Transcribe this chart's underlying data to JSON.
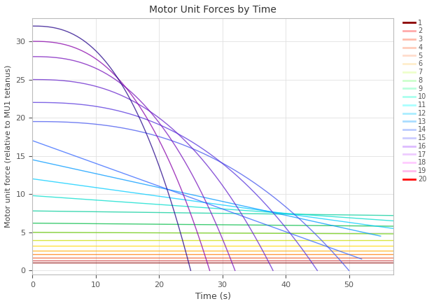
{
  "title": "Motor Unit Forces by Time",
  "xlabel": "Time (s)",
  "ylabel": "Motor unit force (relative to MU1 tetanus)",
  "xlim": [
    0,
    57
  ],
  "ylim": [
    -0.5,
    33
  ],
  "background_color": "#ffffff",
  "figsize": [
    6.2,
    4.37
  ],
  "dpi": 100,
  "units": [
    {
      "mu": 1,
      "f0": 1.0,
      "f_end": 1.0,
      "t_end": 57,
      "line_color": "#8B0000",
      "leg_color": "#8B0000"
    },
    {
      "mu": 2,
      "f0": 1.3,
      "f_end": 1.3,
      "t_end": 57,
      "line_color": "#CC3333",
      "leg_color": "#FFAAAA"
    },
    {
      "mu": 3,
      "f0": 1.7,
      "f_end": 1.7,
      "t_end": 57,
      "line_color": "#EE5522",
      "leg_color": "#FFBBAA"
    },
    {
      "mu": 4,
      "f0": 2.1,
      "f_end": 2.1,
      "t_end": 57,
      "line_color": "#FF7700",
      "leg_color": "#FFCCBB"
    },
    {
      "mu": 5,
      "f0": 2.6,
      "f_end": 2.6,
      "t_end": 57,
      "line_color": "#FFAA00",
      "leg_color": "#FFDDCC"
    },
    {
      "mu": 6,
      "f0": 3.2,
      "f_end": 3.2,
      "t_end": 57,
      "line_color": "#FFD700",
      "leg_color": "#FFEECC"
    },
    {
      "mu": 7,
      "f0": 4.0,
      "f_end": 4.0,
      "t_end": 57,
      "line_color": "#CCDD00",
      "leg_color": "#EEFFCC"
    },
    {
      "mu": 8,
      "f0": 5.0,
      "f_end": 4.8,
      "t_end": 57,
      "line_color": "#66CC00",
      "leg_color": "#CCFFCC"
    },
    {
      "mu": 9,
      "f0": 6.2,
      "f_end": 5.8,
      "t_end": 57,
      "line_color": "#00BB44",
      "leg_color": "#BBFFDD"
    },
    {
      "mu": 10,
      "f0": 7.8,
      "f_end": 7.2,
      "t_end": 57,
      "line_color": "#00CC99",
      "leg_color": "#AAFFEE"
    },
    {
      "mu": 11,
      "f0": 9.8,
      "f_end": 6.5,
      "t_end": 57,
      "line_color": "#00DDCC",
      "leg_color": "#AAFFFF"
    },
    {
      "mu": 12,
      "f0": 12.0,
      "f_end": 5.5,
      "t_end": 57,
      "line_color": "#00CCFF",
      "leg_color": "#AAEEFF"
    },
    {
      "mu": 13,
      "f0": 14.5,
      "f_end": 4.5,
      "t_end": 55,
      "line_color": "#0099FF",
      "leg_color": "#AADDFF"
    },
    {
      "mu": 14,
      "f0": 17.0,
      "f_end": 1.5,
      "t_end": 52,
      "line_color": "#3366FF",
      "leg_color": "#BBCCFF"
    },
    {
      "mu": 15,
      "f0": 19.5,
      "f_end": 0.3,
      "t_end": 50,
      "line_color": "#4455EE",
      "leg_color": "#CCCCFF"
    },
    {
      "mu": 16,
      "f0": 22.0,
      "f_end": 0.0,
      "t_end": 45,
      "line_color": "#5533DD",
      "leg_color": "#DDBBFF"
    },
    {
      "mu": 17,
      "f0": 25.0,
      "f_end": 0.0,
      "t_end": 38,
      "line_color": "#6622CC",
      "leg_color": "#EECCFF"
    },
    {
      "mu": 18,
      "f0": 28.0,
      "f_end": 0.0,
      "t_end": 32,
      "line_color": "#7711BB",
      "leg_color": "#FFCCFF"
    },
    {
      "mu": 19,
      "f0": 30.0,
      "f_end": 0.0,
      "t_end": 28,
      "line_color": "#8800AA",
      "leg_color": "#FFBBEE"
    },
    {
      "mu": 20,
      "f0": 32.0,
      "f_end": 0.0,
      "t_end": 25,
      "line_color": "#220088",
      "leg_color": "#FF0000"
    }
  ]
}
